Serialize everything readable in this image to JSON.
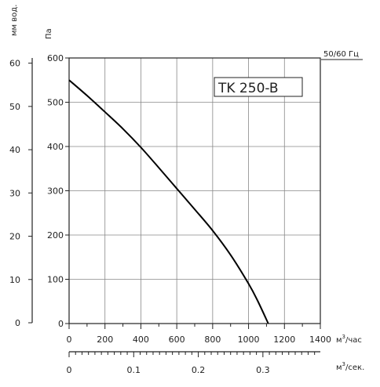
{
  "chart_data": {
    "type": "line",
    "title": "",
    "model_label": "TK 250-B",
    "frequency_label": "50/60 Гц",
    "grid": true,
    "x_primary": {
      "label": "м³/час",
      "label_base": "м",
      "label_sup": "3",
      "label_tail": "/час",
      "range": [
        0,
        1400
      ],
      "ticks": [
        0,
        200,
        400,
        600,
        800,
        1000,
        1200,
        1400
      ],
      "tick_labels": [
        "0",
        "200",
        "400",
        "600",
        "800",
        "1000",
        "1200",
        "1400"
      ]
    },
    "x_secondary": {
      "label": "м³/сек.",
      "label_base": "м",
      "label_sup": "3",
      "label_tail": "/сек.",
      "range": [
        0,
        0.3889
      ],
      "ticks": [
        0,
        0.1,
        0.2,
        0.3
      ],
      "tick_labels": [
        "0",
        "0.1",
        "0.2",
        "0.3"
      ]
    },
    "y_primary": {
      "label": "Па",
      "range": [
        0,
        600
      ],
      "ticks": [
        0,
        100,
        200,
        300,
        400,
        500,
        600
      ],
      "tick_labels": [
        "0",
        "100",
        "200",
        "300",
        "400",
        "500",
        "600"
      ]
    },
    "y_secondary": {
      "label": "мм вод.",
      "range": [
        0,
        61.2
      ],
      "ticks": [
        0,
        10,
        20,
        30,
        40,
        50,
        60
      ],
      "tick_labels": [
        "0",
        "10",
        "20",
        "30",
        "40",
        "50",
        "60"
      ]
    },
    "series": [
      {
        "x": [
          0,
          100,
          200,
          300,
          400,
          500,
          600,
          700,
          800,
          900,
          1000,
          1050,
          1110
        ],
        "y": [
          550,
          515,
          478,
          440,
          398,
          352,
          305,
          258,
          210,
          155,
          90,
          52,
          0
        ]
      }
    ]
  }
}
